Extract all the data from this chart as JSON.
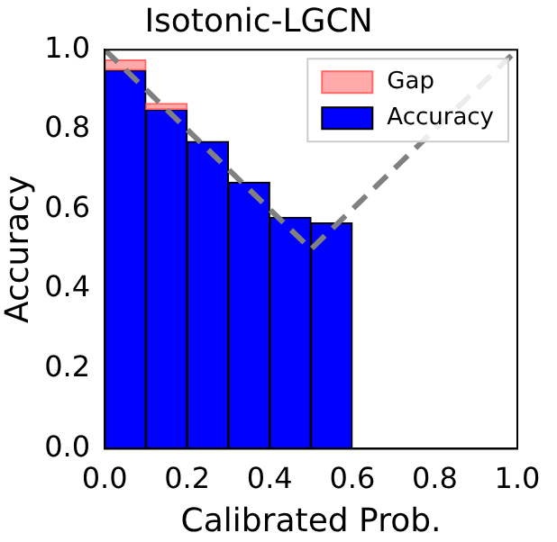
{
  "chart_data": {
    "type": "bar",
    "title": "Isotonic-LGCN",
    "xlabel": "Calibrated Prob.",
    "ylabel": "Accuracy",
    "x": [
      0.05,
      0.15,
      0.25,
      0.35,
      0.45,
      0.55,
      0.65,
      0.75,
      0.85,
      0.95
    ],
    "series": [
      {
        "name": "Gap",
        "color": "#ffaaaa",
        "base": [
          0.949,
          0.85,
          null,
          null,
          null,
          null,
          null,
          null,
          null,
          null
        ],
        "values": [
          0.025,
          0.015,
          null,
          null,
          null,
          null,
          null,
          null,
          null,
          null
        ]
      },
      {
        "name": "Accuracy",
        "color": "#0000ff",
        "values": [
          0.949,
          0.85,
          0.77,
          0.668,
          0.58,
          0.566,
          0,
          0,
          0,
          0
        ]
      },
      {
        "type": "line",
        "color": "#808080",
        "line_style": "dashed",
        "x": [
          0,
          0.5,
          1
        ],
        "values": [
          1,
          0.5,
          1
        ]
      }
    ],
    "xlim": [
      0,
      1
    ],
    "xticks": [
      {
        "value": 0,
        "label": "0.0"
      },
      0.2,
      0.4,
      0.6,
      0.8,
      {
        "value": 1,
        "label": "1.0"
      }
    ],
    "ylim": [
      0,
      1
    ],
    "yticks": [
      {
        "value": 0,
        "label": "0.0"
      },
      0.2,
      0.4,
      0.6,
      0.8,
      {
        "value": 1,
        "label": "1.0"
      }
    ],
    "grid": false,
    "legend": "top right",
    "marker": "none"
  }
}
